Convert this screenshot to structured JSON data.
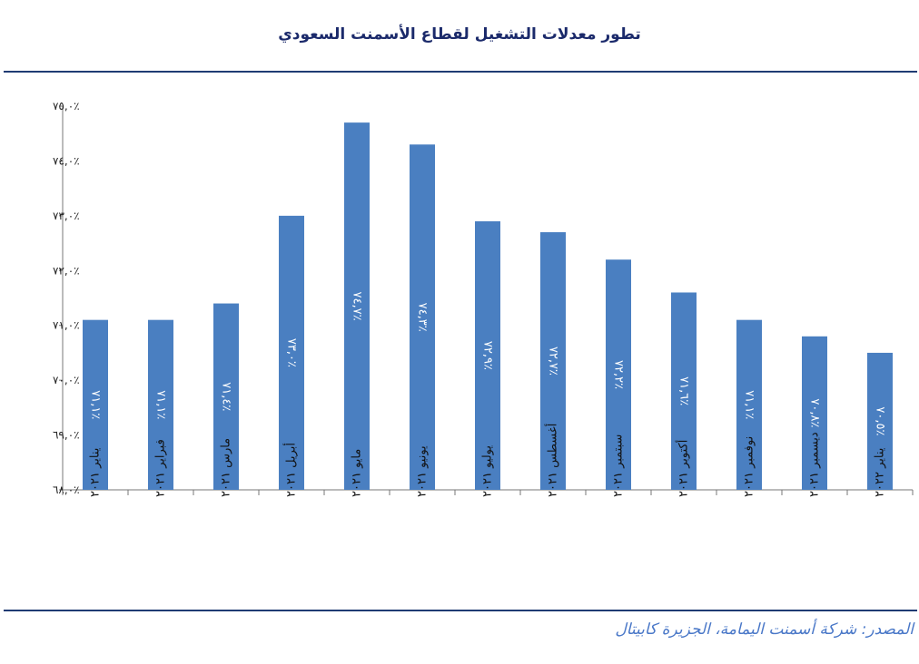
{
  "chart_data": {
    "type": "bar",
    "title": "تطور معدلات التشغيل لقطاع الأسمنت السعودي",
    "categories": [
      "يناير ٢٠٢١",
      "فبراير ٢٠٢١",
      "مارس ٢٠٢١",
      "أبريل ٢٠٢١",
      "مايو ٢٠٢١",
      "يونيو ٢٠٢١",
      "يوليو ٢٠٢١",
      "أغسطس ٢٠٢١",
      "سبتمبر ٢٠٢١",
      "أكتوبر ٢٠٢١",
      "نوفمبر ٢٠٢١",
      "ديسمبر ٢٠٢١",
      "يناير ٢٠٢٢"
    ],
    "values": [
      71.1,
      71.1,
      71.4,
      73.0,
      74.7,
      74.3,
      72.9,
      72.7,
      72.2,
      71.6,
      71.1,
      70.8,
      70.5
    ],
    "data_labels": [
      "٪٧١,١",
      "٪٧١,١",
      "٪٧١,٤",
      "٪٧٣,٠",
      "٪٧٤,٧",
      "٪٧٤,٣",
      "٪٧٢,٩",
      "٪٧٢,٧",
      "٪٧٢,٢",
      "٪٧١,٦",
      "٪٧١,١",
      "٪٧٠,٨",
      "٪٧٠,٥"
    ],
    "y_ticks": [
      68,
      69,
      70,
      71,
      72,
      73,
      74,
      75
    ],
    "y_tick_labels": [
      "٪٦٨,٠",
      "٪٦٩,٠",
      "٪٧٠,٠",
      "٪٧١,٠",
      "٪٧٢,٠",
      "٪٧٣,٠",
      "٪٧٤,٠",
      "٪٧٥,٠"
    ],
    "ylim": [
      68,
      75
    ],
    "xlabel": "",
    "ylabel": "",
    "grid": false,
    "bar_color": "#4a7fc1"
  },
  "source": "المصدر: شركة أسمنت اليمامة، الجزيرة كابيتال"
}
